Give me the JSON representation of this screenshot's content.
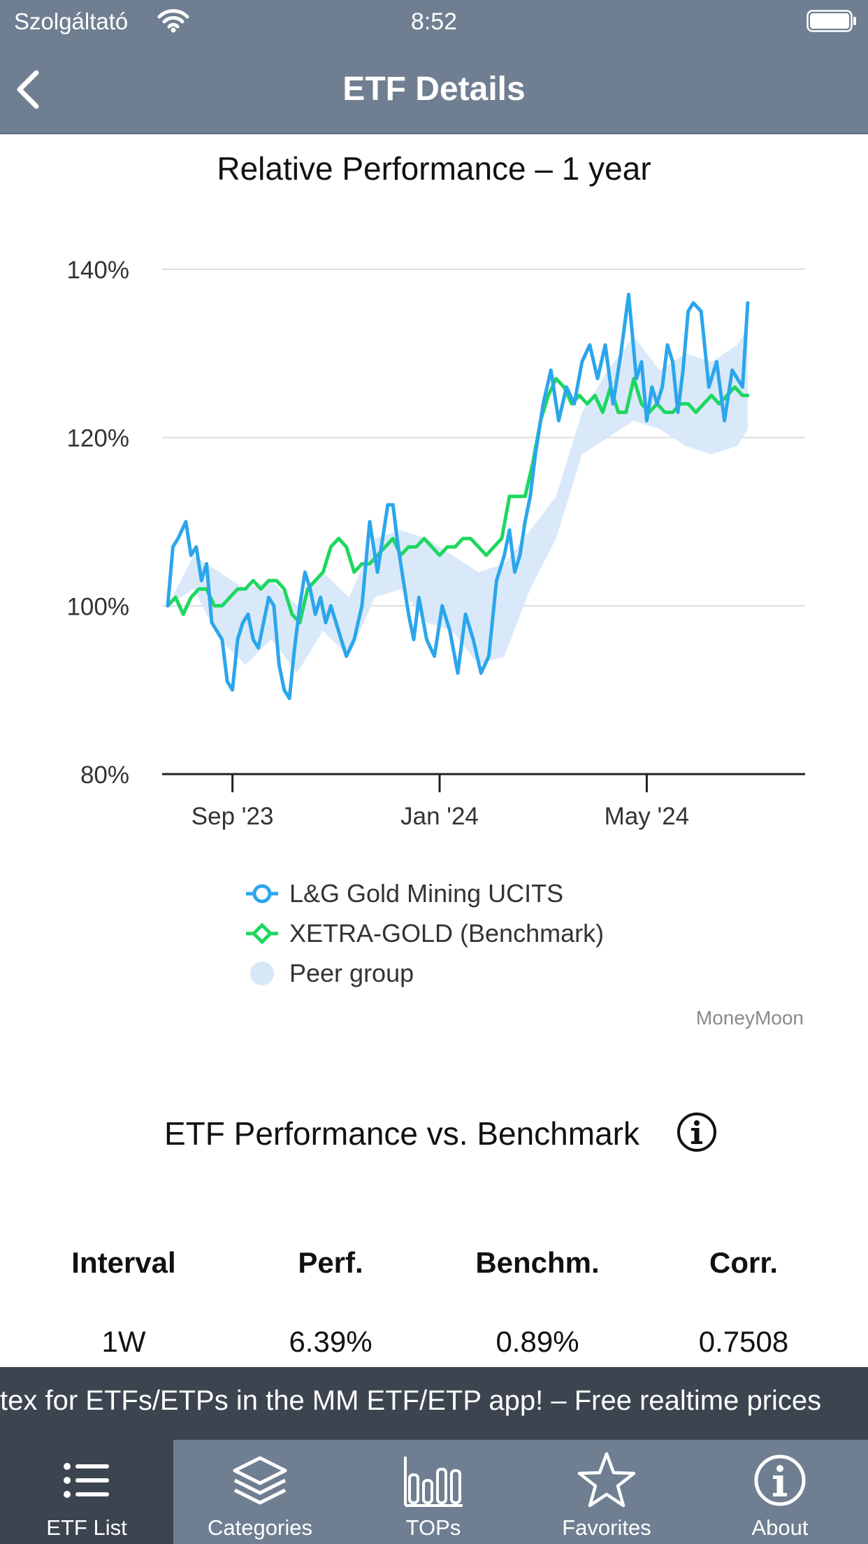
{
  "status_bar": {
    "carrier": "Szolgáltató",
    "time": "8:52"
  },
  "nav": {
    "title": "ETF Details",
    "back_icon": "chevron-left-icon"
  },
  "chart_title": "Relative Performance – 1 year",
  "chart_data": {
    "type": "line",
    "title": "Relative Performance – 1 year",
    "ylim": [
      80,
      140
    ],
    "y_ticks": [
      "140%",
      "120%",
      "100%",
      "80%"
    ],
    "x_ticks": [
      "Sep '23",
      "Jan '24",
      "May '24"
    ],
    "x_tick_months": [
      1.25,
      5.25,
      9.25
    ],
    "x_range_months": [
      0,
      12.2
    ],
    "grid": true,
    "legend_position": "bottom",
    "series": [
      {
        "name": "L&G Gold Mining UCITS",
        "color": "#2ba6ec",
        "marker": "circle",
        "x": [
          0,
          0.1,
          0.2,
          0.35,
          0.45,
          0.55,
          0.65,
          0.75,
          0.85,
          0.95,
          1.05,
          1.15,
          1.25,
          1.35,
          1.45,
          1.55,
          1.65,
          1.75,
          1.85,
          1.95,
          2.05,
          2.15,
          2.25,
          2.35,
          2.45,
          2.55,
          2.65,
          2.75,
          2.85,
          2.95,
          3.05,
          3.15,
          3.3,
          3.45,
          3.6,
          3.75,
          3.9,
          4.05,
          4.15,
          4.25,
          4.35,
          4.45,
          4.55,
          4.65,
          4.75,
          4.85,
          5.0,
          5.15,
          5.3,
          5.45,
          5.6,
          5.75,
          5.9,
          6.05,
          6.2,
          6.35,
          6.5,
          6.6,
          6.7,
          6.8,
          6.9,
          7.0,
          7.1,
          7.25,
          7.4,
          7.55,
          7.7,
          7.85,
          8.0,
          8.15,
          8.3,
          8.45,
          8.6,
          8.75,
          8.9,
          9.05,
          9.15,
          9.25,
          9.35,
          9.45,
          9.55,
          9.65,
          9.75,
          9.85,
          9.95,
          10.05,
          10.15,
          10.3,
          10.45,
          10.6,
          10.75,
          10.9,
          11.0,
          11.1,
          11.2
        ],
        "values": [
          100,
          107,
          108,
          110,
          106,
          107,
          103,
          105,
          98,
          97,
          96,
          91,
          90,
          96,
          98,
          99,
          96,
          95,
          98,
          101,
          100,
          93,
          90,
          89,
          95,
          100,
          104,
          102,
          99,
          101,
          98,
          100,
          97,
          94,
          96,
          100,
          110,
          104,
          108,
          112,
          112,
          107,
          103,
          99,
          96,
          101,
          96,
          94,
          100,
          97,
          92,
          99,
          96,
          92,
          94,
          103,
          106,
          109,
          104,
          106,
          110,
          113,
          118,
          124,
          128,
          122,
          126,
          124,
          129,
          131,
          127,
          131,
          124,
          130,
          137,
          127,
          129,
          122,
          126,
          124,
          126,
          131,
          129,
          123,
          128,
          135,
          136,
          135,
          126,
          129,
          122,
          128,
          127,
          126,
          136
        ],
        "x_note": "months from start; Sep '23 tick at 1.25"
      },
      {
        "name": "XETRA-GOLD (Benchmark)",
        "color": "#1ed760",
        "marker": "diamond",
        "x": [
          0,
          0.15,
          0.3,
          0.45,
          0.6,
          0.75,
          0.9,
          1.05,
          1.2,
          1.35,
          1.5,
          1.65,
          1.8,
          1.95,
          2.1,
          2.25,
          2.4,
          2.55,
          2.7,
          2.85,
          3.0,
          3.15,
          3.3,
          3.45,
          3.6,
          3.75,
          3.9,
          4.05,
          4.2,
          4.35,
          4.5,
          4.65,
          4.8,
          4.95,
          5.1,
          5.25,
          5.4,
          5.55,
          5.7,
          5.85,
          6.0,
          6.15,
          6.3,
          6.45,
          6.6,
          6.75,
          6.9,
          7.05,
          7.2,
          7.35,
          7.5,
          7.65,
          7.8,
          7.95,
          8.1,
          8.25,
          8.4,
          8.55,
          8.7,
          8.85,
          9.0,
          9.15,
          9.3,
          9.45,
          9.6,
          9.75,
          9.9,
          10.05,
          10.2,
          10.35,
          10.5,
          10.65,
          10.8,
          10.95,
          11.1,
          11.2
        ],
        "values": [
          100,
          101,
          99,
          101,
          102,
          102,
          100,
          100,
          101,
          102,
          102,
          103,
          102,
          103,
          103,
          102,
          99,
          98,
          102,
          103,
          104,
          107,
          108,
          107,
          104,
          105,
          105,
          106,
          107,
          108,
          106,
          107,
          107,
          108,
          107,
          106,
          107,
          107,
          108,
          108,
          107,
          106,
          107,
          108,
          113,
          113,
          113,
          117,
          122,
          125,
          127,
          126,
          124,
          125,
          124,
          125,
          123,
          126,
          123,
          123,
          127,
          124,
          123,
          124,
          123,
          123,
          124,
          124,
          123,
          124,
          125,
          124,
          125,
          126,
          125,
          125
        ],
        "x_note": "months from start; Sep '23 tick at 1.25"
      }
    ],
    "peer_group": {
      "name": "Peer group",
      "color": "#d6e7f8",
      "x": [
        0,
        0.5,
        1.0,
        1.5,
        2.0,
        2.5,
        3.0,
        3.5,
        4.0,
        4.5,
        5.0,
        5.5,
        6.0,
        6.5,
        7.0,
        7.5,
        8.0,
        8.5,
        9.0,
        9.5,
        10.0,
        10.5,
        11.0,
        11.2
      ],
      "low": [
        100,
        102,
        96,
        93,
        96,
        92,
        97,
        94,
        101,
        102,
        98,
        97,
        93,
        94,
        102,
        108,
        118,
        120,
        122,
        121,
        119,
        118,
        119,
        121
      ],
      "high": [
        100,
        106,
        104,
        102,
        103,
        100,
        104,
        101,
        108,
        109,
        108,
        106,
        104,
        105,
        109,
        113,
        123,
        128,
        132,
        128,
        130,
        129,
        131,
        133
      ]
    }
  },
  "legend": [
    {
      "label": "L&G Gold Mining UCITS",
      "icon": "circle-marker-icon",
      "color": "#2ba6ec"
    },
    {
      "label": "XETRA-GOLD (Benchmark)",
      "icon": "diamond-marker-icon",
      "color": "#1ed760"
    },
    {
      "label": "Peer group",
      "icon": "filled-circle-icon",
      "color": "#d6e7f8"
    }
  ],
  "credit": "MoneyMoon",
  "performance": {
    "title": "ETF Performance vs. Benchmark",
    "info_icon": "info-circle-icon",
    "headers": [
      "Interval",
      "Perf.",
      "Benchm.",
      "Corr."
    ],
    "rows": [
      [
        "1W",
        "6.39%",
        "0.89%",
        "0.7508"
      ]
    ]
  },
  "ticker": "tex for ETFs/ETPs in the MM ETF/ETP app! – Free realtime prices",
  "tabs": [
    {
      "label": "ETF List",
      "icon": "list-icon",
      "active": true
    },
    {
      "label": "Categories",
      "icon": "layers-icon",
      "active": false
    },
    {
      "label": "TOPs",
      "icon": "bar-chart-icon",
      "active": false
    },
    {
      "label": "Favorites",
      "icon": "star-icon",
      "active": false
    },
    {
      "label": "About",
      "icon": "info-circle-icon",
      "active": false
    }
  ],
  "colors": {
    "bar": "#6f7f91",
    "dark_bar": "#3b444f",
    "gold_mining": "#2ba6ec",
    "benchmark": "#1ed760",
    "peer": "#d6e7f8"
  }
}
